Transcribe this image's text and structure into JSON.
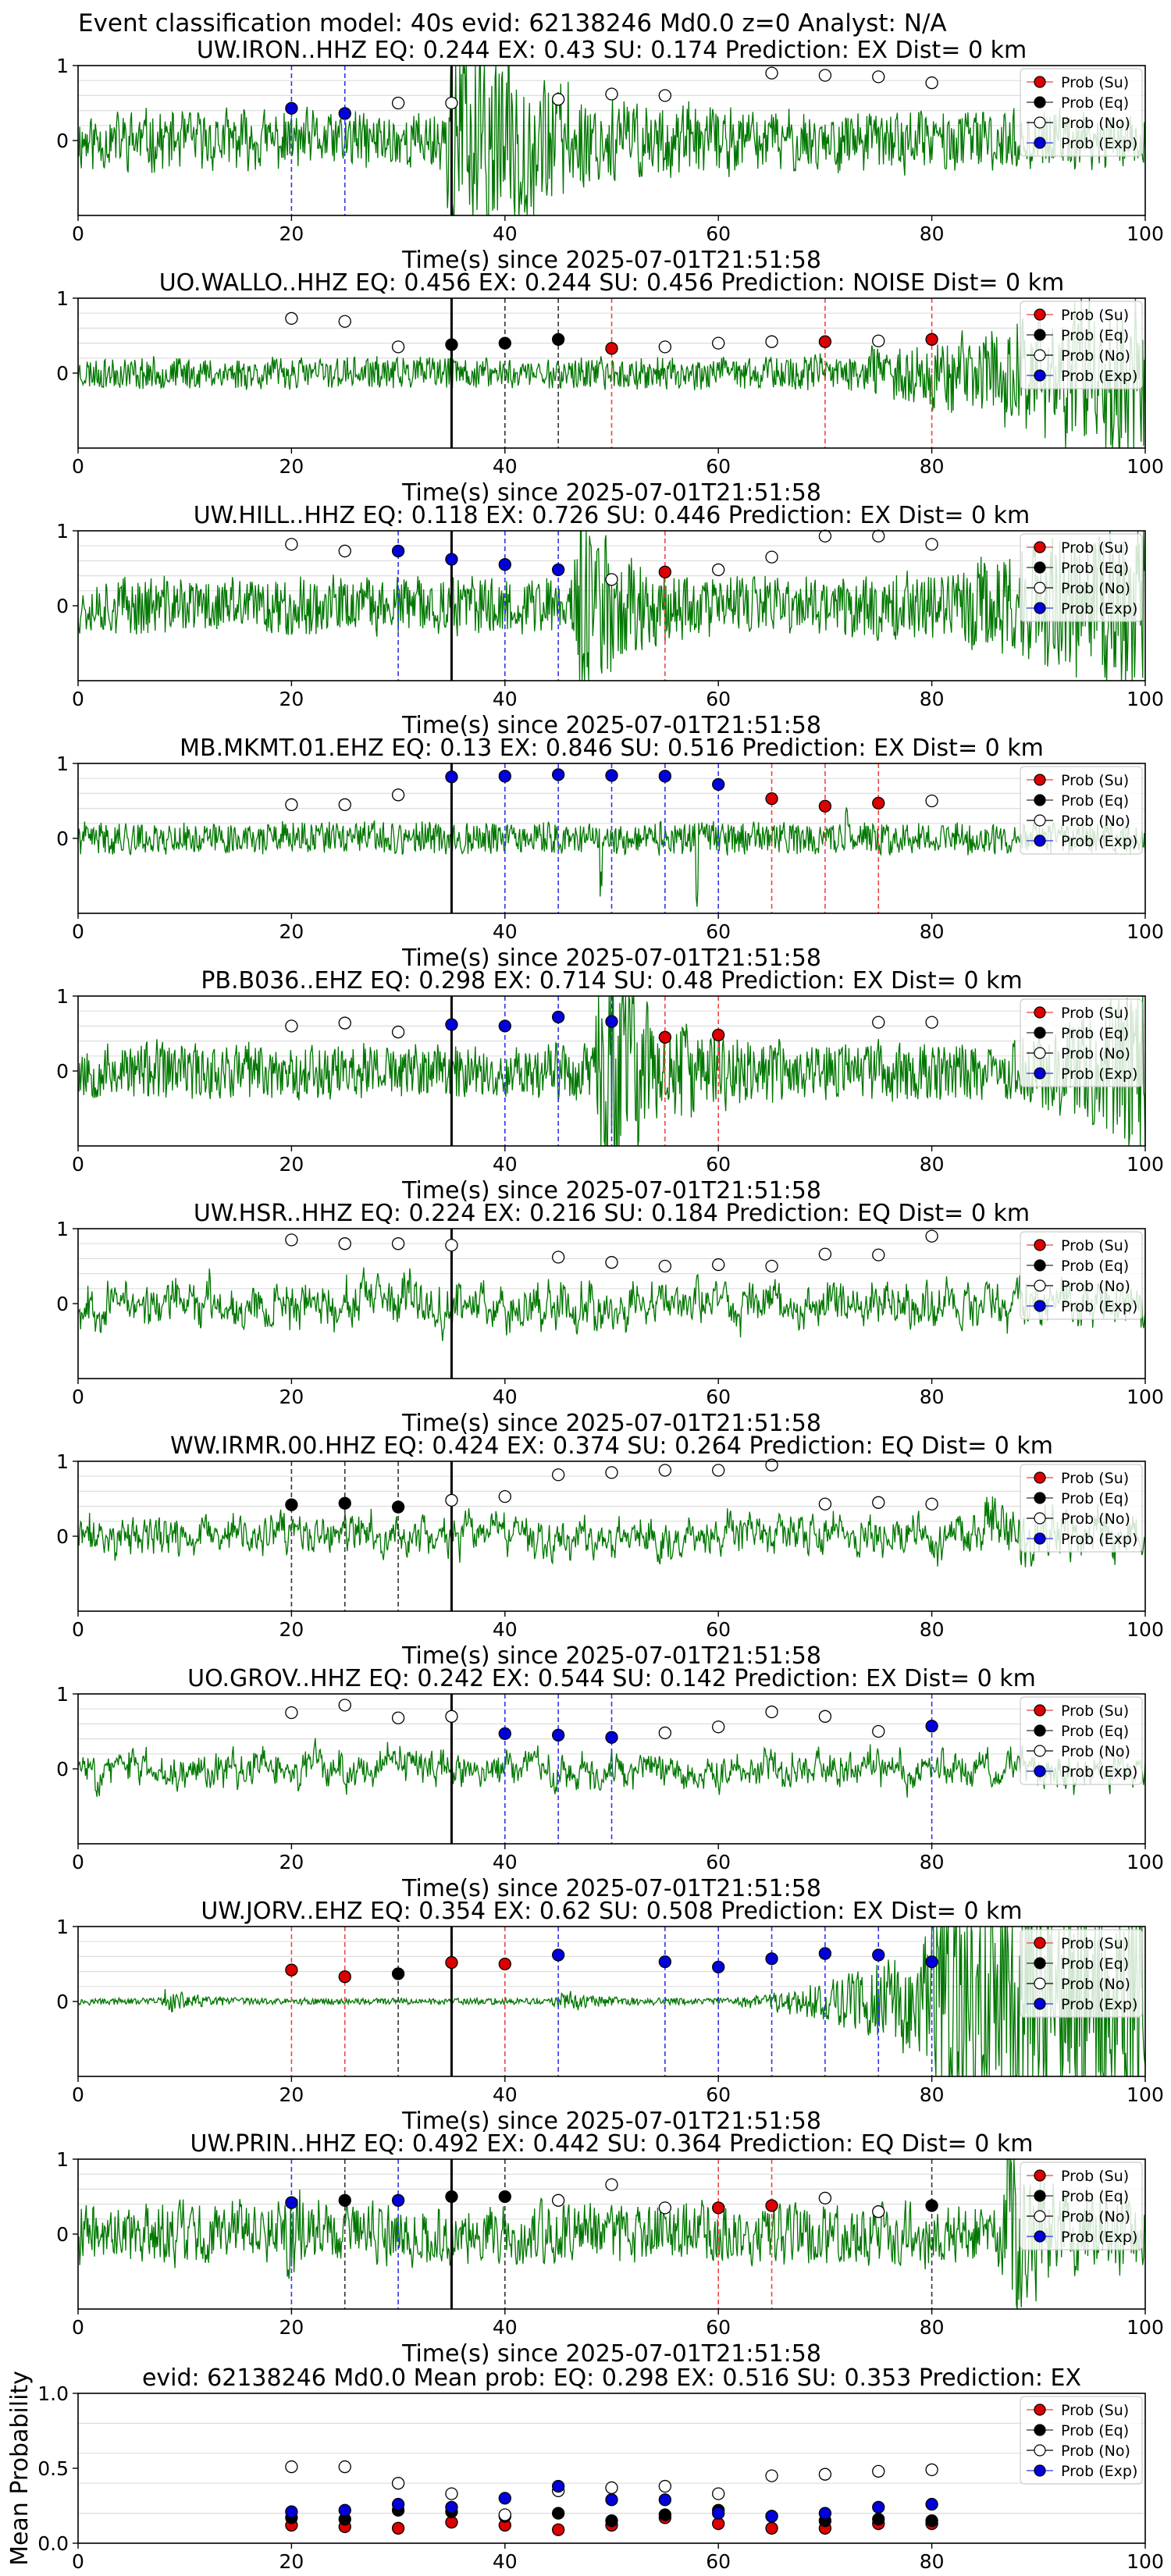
{
  "figure_title": "Event classification model: 40s evid: 62138246 Md0.0 z=0 Analyst: N/A",
  "legend": [
    "Prob (Su)",
    "Prob (Eq)",
    "Prob (No)",
    "Prob (Exp)"
  ],
  "colors": {
    "su": "#dd0000",
    "eq": "#000000",
    "no": "#ffffff",
    "exp": "#0000dd",
    "trace": "#007700",
    "su_line": "#ee4444",
    "eq_line": "#333333",
    "exp_line": "#3333ee",
    "grid": "#dddddd"
  },
  "chart_data": [
    {
      "type": "line",
      "title": "UW.IRON..HHZ    EQ: 0.244   EX: 0.43   SU: 0.174    Prediction: EX     Dist= 0 km",
      "xlabel": "Time(s) since 2025-07-01T21:51:58",
      "ylabel": "",
      "xlim": [
        0,
        100
      ],
      "xticks": [
        0,
        20,
        40,
        60,
        80,
        100
      ],
      "ylim": [
        -1,
        1
      ],
      "yticks": [
        0,
        1
      ],
      "grid": true,
      "legend_position": "top-right",
      "pick_time": 35,
      "series": [
        {
          "name": "Prob (Exp)",
          "x": [
            20,
            25
          ],
          "y": [
            0.43,
            0.36
          ]
        },
        {
          "name": "Prob (No)",
          "x": [
            30,
            35,
            45,
            50,
            55,
            65,
            70,
            75,
            80
          ],
          "y": [
            0.5,
            0.5,
            0.55,
            0.62,
            0.6,
            0.9,
            0.87,
            0.85,
            0.77
          ]
        }
      ],
      "waveform": {
        "seed": 11,
        "base": 0.22,
        "wave_period": 1.2,
        "events": [
          {
            "t": 35,
            "amp": 1.0,
            "decay": 7
          }
        ]
      }
    },
    {
      "type": "line",
      "title": "UO.WALLO..HHZ   EQ: 0.456   EX: 0.244   SU: 0.456    Prediction: NOISE     Dist= 0 km",
      "xlabel": "Time(s) since 2025-07-01T21:51:58",
      "ylabel": "",
      "xlim": [
        0,
        100
      ],
      "xticks": [
        0,
        20,
        40,
        60,
        80,
        100
      ],
      "ylim": [
        -1,
        1
      ],
      "yticks": [
        0,
        1
      ],
      "grid": true,
      "legend_position": "top-right",
      "pick_time": 35,
      "series": [
        {
          "name": "Prob (Eq)",
          "x": [
            35,
            40,
            45
          ],
          "y": [
            0.38,
            0.4,
            0.45
          ]
        },
        {
          "name": "Prob (Su)",
          "x": [
            50,
            70,
            80
          ],
          "y": [
            0.33,
            0.42,
            0.45
          ]
        },
        {
          "name": "Prob (No)",
          "x": [
            20,
            25,
            30,
            55,
            60,
            65,
            75
          ],
          "y": [
            0.73,
            0.69,
            0.35,
            0.35,
            0.4,
            0.42,
            0.43
          ]
        }
      ],
      "waveform": {
        "seed": 23,
        "base": 0.1,
        "wave_period": 0.9,
        "ramp": {
          "start": 62,
          "end": 100,
          "amp": 0.55
        }
      }
    },
    {
      "type": "line",
      "title": "UW.HILL..HHZ    EQ: 0.118   EX: 0.726   SU: 0.446    Prediction: EX     Dist= 0 km",
      "xlabel": "Time(s) since 2025-07-01T21:51:58",
      "ylabel": "",
      "xlim": [
        0,
        100
      ],
      "xticks": [
        0,
        20,
        40,
        60,
        80,
        100
      ],
      "ylim": [
        -1,
        1
      ],
      "yticks": [
        0,
        1
      ],
      "grid": true,
      "legend_position": "top-right",
      "pick_time": 35,
      "series": [
        {
          "name": "Prob (Exp)",
          "x": [
            30,
            35,
            40,
            45
          ],
          "y": [
            0.73,
            0.62,
            0.55,
            0.48
          ]
        },
        {
          "name": "Prob (Su)",
          "x": [
            55
          ],
          "y": [
            0.45
          ]
        },
        {
          "name": "Prob (No)",
          "x": [
            20,
            25,
            50,
            60,
            65,
            70,
            75,
            80
          ],
          "y": [
            0.82,
            0.73,
            0.35,
            0.48,
            0.65,
            0.93,
            0.93,
            0.82
          ]
        }
      ],
      "waveform": {
        "seed": 37,
        "base": 0.18,
        "wave_period": 0.8,
        "events": [
          {
            "t": 47,
            "amp": 0.75,
            "decay": 3
          }
        ],
        "ramp": {
          "start": 65,
          "end": 100,
          "amp": 0.4
        }
      }
    },
    {
      "type": "line",
      "title": "MB.MKMT.01.EHZ    EQ: 0.13   EX: 0.846   SU: 0.516    Prediction: EX     Dist= 0 km",
      "xlabel": "Time(s) since 2025-07-01T21:51:58",
      "ylabel": "",
      "xlim": [
        0,
        100
      ],
      "xticks": [
        0,
        20,
        40,
        60,
        80,
        100
      ],
      "ylim": [
        -1,
        1
      ],
      "yticks": [
        0,
        1
      ],
      "grid": true,
      "legend_position": "top-right",
      "pick_time": 35,
      "series": [
        {
          "name": "Prob (Exp)",
          "x": [
            35,
            40,
            45,
            50,
            55,
            60
          ],
          "y": [
            0.82,
            0.83,
            0.85,
            0.84,
            0.83,
            0.72
          ]
        },
        {
          "name": "Prob (Su)",
          "x": [
            65,
            70,
            75
          ],
          "y": [
            0.53,
            0.43,
            0.47
          ]
        },
        {
          "name": "Prob (No)",
          "x": [
            20,
            25,
            30,
            80
          ],
          "y": [
            0.45,
            0.45,
            0.58,
            0.5
          ]
        }
      ],
      "waveform": {
        "seed": 41,
        "base": 0.1,
        "wave_period": 0.7,
        "spikes": [
          {
            "t": 49,
            "amp": -0.6
          },
          {
            "t": 58,
            "amp": -0.85
          },
          {
            "t": 72,
            "amp": 0.35
          }
        ]
      }
    },
    {
      "type": "line",
      "title": "PB.B036..EHZ    EQ: 0.298   EX: 0.714   SU: 0.48    Prediction: EX     Dist= 0 km",
      "xlabel": "Time(s) since 2025-07-01T21:51:58",
      "ylabel": "",
      "xlim": [
        0,
        100
      ],
      "xticks": [
        0,
        20,
        40,
        60,
        80,
        100
      ],
      "ylim": [
        -1,
        1
      ],
      "yticks": [
        0,
        1
      ],
      "grid": true,
      "legend_position": "top-right",
      "pick_time": 35,
      "series": [
        {
          "name": "Prob (Exp)",
          "x": [
            35,
            40,
            45,
            50
          ],
          "y": [
            0.62,
            0.6,
            0.72,
            0.66
          ]
        },
        {
          "name": "Prob (Su)",
          "x": [
            55,
            60
          ],
          "y": [
            0.45,
            0.48
          ]
        },
        {
          "name": "Prob (No)",
          "x": [
            20,
            25,
            30,
            75,
            80
          ],
          "y": [
            0.6,
            0.64,
            0.52,
            0.65,
            0.65
          ]
        }
      ],
      "waveform": {
        "seed": 53,
        "base": 0.18,
        "wave_period": 0.8,
        "events": [
          {
            "t": 49,
            "amp": 0.95,
            "decay": 4
          }
        ],
        "ramp": {
          "start": 85,
          "end": 100,
          "amp": 0.45
        }
      }
    },
    {
      "type": "line",
      "title": "UW.HSR..HHZ    EQ: 0.224   EX: 0.216   SU: 0.184    Prediction: EQ     Dist= 0 km",
      "xlabel": "Time(s) since 2025-07-01T21:51:58",
      "ylabel": "",
      "xlim": [
        0,
        100
      ],
      "xticks": [
        0,
        20,
        40,
        60,
        80,
        100
      ],
      "ylim": [
        -1,
        1
      ],
      "yticks": [
        0,
        1
      ],
      "grid": true,
      "legend_position": "top-right",
      "pick_time": 35,
      "series": [
        {
          "name": "Prob (No)",
          "x": [
            20,
            25,
            30,
            35,
            45,
            50,
            55,
            60,
            65,
            70,
            75,
            80
          ],
          "y": [
            0.85,
            0.8,
            0.8,
            0.78,
            0.62,
            0.55,
            0.5,
            0.52,
            0.5,
            0.66,
            0.65,
            0.9
          ]
        }
      ],
      "waveform": {
        "seed": 67,
        "base": 0.45,
        "wave_period": 3.0
      }
    },
    {
      "type": "line",
      "title": "WW.IRMR.00.HHZ    EQ: 0.424   EX: 0.374   SU: 0.264    Prediction: EQ     Dist= 0 km",
      "xlabel": "Time(s) since 2025-07-01T21:51:58",
      "ylabel": "",
      "xlim": [
        0,
        100
      ],
      "xticks": [
        0,
        20,
        40,
        60,
        80,
        100
      ],
      "ylim": [
        -1,
        1
      ],
      "yticks": [
        0,
        1
      ],
      "grid": true,
      "legend_position": "top-right",
      "pick_time": 35,
      "series": [
        {
          "name": "Prob (Eq)",
          "x": [
            20,
            25,
            30
          ],
          "y": [
            0.42,
            0.44,
            0.39
          ]
        },
        {
          "name": "Prob (No)",
          "x": [
            35,
            40,
            45,
            50,
            55,
            60,
            65,
            70,
            75,
            80
          ],
          "y": [
            0.48,
            0.53,
            0.82,
            0.85,
            0.88,
            0.88,
            0.95,
            0.43,
            0.45,
            0.43
          ]
        }
      ],
      "waveform": {
        "seed": 71,
        "base": 0.42,
        "wave_period": 3.2,
        "events": [
          {
            "t": 85,
            "amp": 0.5,
            "decay": 5
          }
        ]
      }
    },
    {
      "type": "line",
      "title": "UO.GROV..HHZ    EQ: 0.242   EX: 0.544   SU: 0.142    Prediction: EX     Dist= 0 km",
      "xlabel": "Time(s) since 2025-07-01T21:51:58",
      "ylabel": "",
      "xlim": [
        0,
        100
      ],
      "xticks": [
        0,
        20,
        40,
        60,
        80,
        100
      ],
      "ylim": [
        -1,
        1
      ],
      "yticks": [
        0,
        1
      ],
      "grid": true,
      "legend_position": "top-right",
      "pick_time": 35,
      "series": [
        {
          "name": "Prob (Exp)",
          "x": [
            40,
            45,
            50,
            80
          ],
          "y": [
            0.47,
            0.45,
            0.42,
            0.57
          ]
        },
        {
          "name": "Prob (No)",
          "x": [
            20,
            25,
            30,
            35,
            55,
            60,
            65,
            70,
            75
          ],
          "y": [
            0.75,
            0.85,
            0.68,
            0.7,
            0.48,
            0.56,
            0.76,
            0.7,
            0.5
          ]
        }
      ],
      "waveform": {
        "seed": 83,
        "base": 0.4,
        "wave_period": 3.5
      }
    },
    {
      "type": "line",
      "title": "UW.JORV..EHZ    EQ: 0.354   EX: 0.62   SU: 0.508    Prediction: EX     Dist= 0 km",
      "xlabel": "Time(s) since 2025-07-01T21:51:58",
      "ylabel": "",
      "xlim": [
        0,
        100
      ],
      "xticks": [
        0,
        20,
        40,
        60,
        80,
        100
      ],
      "ylim": [
        -1,
        1
      ],
      "yticks": [
        0,
        1
      ],
      "grid": true,
      "legend_position": "top-right",
      "pick_time": 35,
      "series": [
        {
          "name": "Prob (Su)",
          "x": [
            20,
            25,
            35,
            40
          ],
          "y": [
            0.42,
            0.33,
            0.52,
            0.5
          ]
        },
        {
          "name": "Prob (Eq)",
          "x": [
            30
          ],
          "y": [
            0.37
          ]
        },
        {
          "name": "Prob (Exp)",
          "x": [
            45,
            55,
            60,
            65,
            70,
            75,
            80
          ],
          "y": [
            0.62,
            0.53,
            0.46,
            0.57,
            0.64,
            0.62,
            0.53
          ]
        }
      ],
      "waveform": {
        "seed": 97,
        "base": 0.02,
        "wave_period": 0.6,
        "ramp": {
          "start": 58,
          "end": 88,
          "amp": 0.7
        },
        "events": [
          {
            "t": 80,
            "amp": 0.8,
            "decay": 4
          },
          {
            "t": 8,
            "amp": 0.06,
            "decay": 3
          },
          {
            "t": 45,
            "amp": 0.05,
            "decay": 4
          }
        ]
      }
    },
    {
      "type": "line",
      "title": "UW.PRIN..HHZ    EQ: 0.492   EX: 0.442   SU: 0.364    Prediction: EQ     Dist= 0 km",
      "xlabel": "Time(s) since 2025-07-01T21:51:58",
      "ylabel": "",
      "xlim": [
        0,
        100
      ],
      "xticks": [
        0,
        20,
        40,
        60,
        80,
        100
      ],
      "ylim": [
        -1,
        1
      ],
      "yticks": [
        0,
        1
      ],
      "grid": true,
      "legend_position": "top-right",
      "pick_time": 35,
      "series": [
        {
          "name": "Prob (Exp)",
          "x": [
            20,
            30
          ],
          "y": [
            0.42,
            0.45
          ]
        },
        {
          "name": "Prob (Eq)",
          "x": [
            25,
            35,
            40,
            80
          ],
          "y": [
            0.45,
            0.5,
            0.5,
            0.38
          ]
        },
        {
          "name": "Prob (Su)",
          "x": [
            60,
            65
          ],
          "y": [
            0.35,
            0.38
          ]
        },
        {
          "name": "Prob (No)",
          "x": [
            45,
            50,
            55,
            70,
            75
          ],
          "y": [
            0.45,
            0.66,
            0.35,
            0.48,
            0.3
          ]
        }
      ],
      "waveform": {
        "seed": 109,
        "base": 0.25,
        "wave_period": 1.3,
        "events": [
          {
            "t": 87,
            "amp": 0.65,
            "decay": 4
          },
          {
            "t": 20,
            "amp": -0.3,
            "decay": 1
          }
        ]
      }
    },
    {
      "type": "scatter",
      "title": "evid: 62138246  Md0.0    Mean prob:    EQ: 0.298  EX: 0.516  SU: 0.353    Prediction: EX",
      "xlabel": "",
      "ylabel": "Mean Probability",
      "xlim": [
        0,
        100
      ],
      "xticks": [
        0,
        20,
        40,
        60,
        80,
        100
      ],
      "ylim": [
        0,
        1
      ],
      "yticks": [
        "0.0",
        "0.5",
        "1.0"
      ],
      "grid": true,
      "legend_position": "top-right",
      "series": [
        {
          "name": "Prob (Su)",
          "x": [
            20,
            25,
            30,
            35,
            40,
            45,
            50,
            55,
            60,
            65,
            70,
            75,
            80
          ],
          "y": [
            0.12,
            0.11,
            0.1,
            0.14,
            0.12,
            0.09,
            0.12,
            0.17,
            0.13,
            0.1,
            0.1,
            0.13,
            0.13
          ]
        },
        {
          "name": "Prob (Eq)",
          "x": [
            20,
            25,
            30,
            35,
            40,
            45,
            50,
            55,
            60,
            65,
            70,
            75,
            80
          ],
          "y": [
            0.17,
            0.16,
            0.22,
            0.21,
            0.18,
            0.2,
            0.15,
            0.19,
            0.22,
            0.18,
            0.15,
            0.16,
            0.15
          ]
        },
        {
          "name": "Prob (No)",
          "x": [
            20,
            25,
            30,
            35,
            40,
            45,
            50,
            55,
            60,
            65,
            70,
            75,
            80
          ],
          "y": [
            0.51,
            0.51,
            0.4,
            0.33,
            0.19,
            0.35,
            0.37,
            0.38,
            0.33,
            0.45,
            0.46,
            0.48,
            0.49
          ]
        },
        {
          "name": "Prob (Exp)",
          "x": [
            20,
            25,
            30,
            35,
            40,
            45,
            50,
            55,
            60,
            65,
            70,
            75,
            80
          ],
          "y": [
            0.21,
            0.22,
            0.26,
            0.24,
            0.3,
            0.38,
            0.29,
            0.29,
            0.2,
            0.18,
            0.2,
            0.24,
            0.26
          ]
        }
      ]
    }
  ]
}
